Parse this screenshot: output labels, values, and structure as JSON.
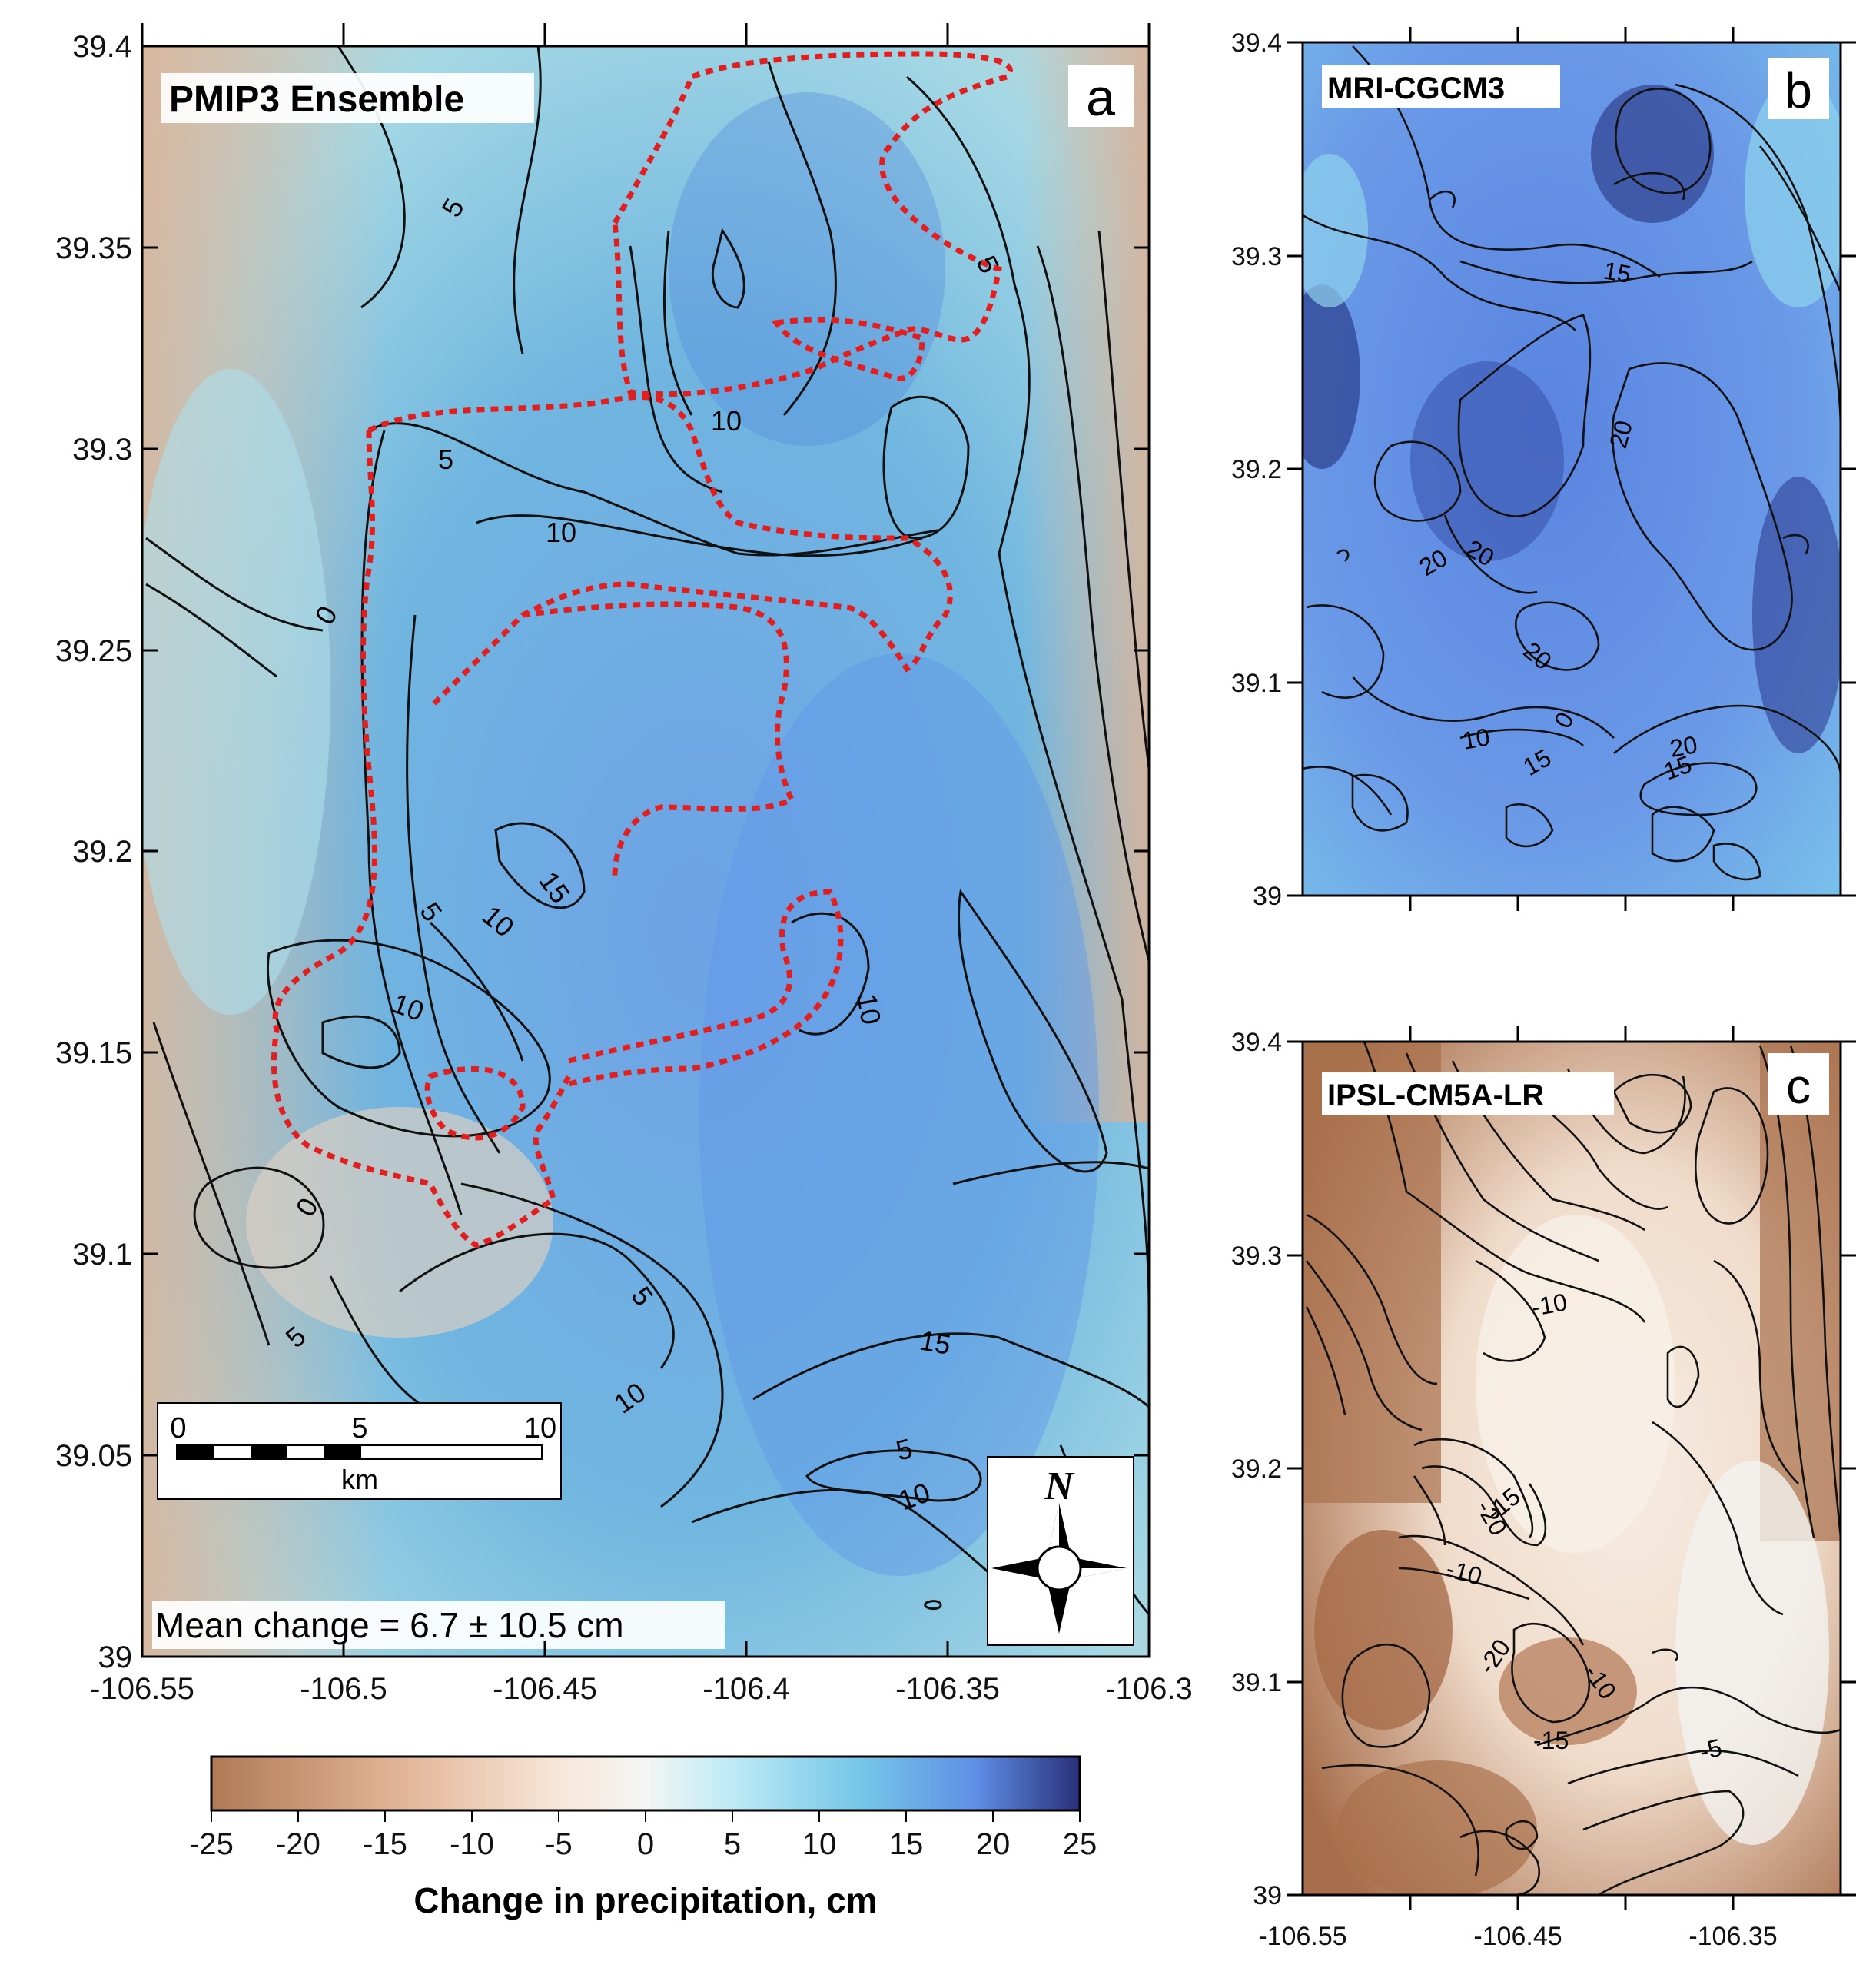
{
  "panels": {
    "a": {
      "title": "PMIP3 Ensemble",
      "letter": "a",
      "y_ticks": [
        "39.4",
        "39.35",
        "39.3",
        "39.25",
        "39.2",
        "39.15",
        "39.1",
        "39.05",
        "39"
      ],
      "x_ticks": [
        "-106.55",
        "-106.5",
        "-106.45",
        "-106.4",
        "-106.35",
        "-106.3"
      ],
      "contour_labels": [
        "5",
        "5",
        "10",
        "5",
        "10",
        "0",
        "15",
        "5",
        "10",
        "10",
        "10",
        "0",
        "5",
        "5",
        "10",
        "15",
        "5",
        "10"
      ],
      "mean_change": "Mean change = 6.7 ± 10.5 cm",
      "scale_bar": {
        "ticks": [
          "0",
          "5",
          "10"
        ],
        "unit": "km"
      },
      "north_arrow": "N"
    },
    "b": {
      "title": "MRI-CGCM3",
      "letter": "b",
      "y_ticks": [
        "39.4",
        "39.3",
        "39.2",
        "39.1",
        "39"
      ],
      "contour_labels": [
        "15",
        "20",
        "20",
        "20",
        "20",
        "10",
        "0",
        "15",
        "20",
        "15"
      ]
    },
    "c": {
      "title": "IPSL-CM5A-LR",
      "letter": "c",
      "y_ticks": [
        "39.4",
        "39.3",
        "39.2",
        "39.1",
        "39"
      ],
      "x_ticks": [
        "-106.55",
        "-106.45",
        "-106.35"
      ],
      "contour_labels": [
        "-10",
        "-20",
        "-15",
        "-10",
        "-20",
        "-10",
        "-15",
        "-5"
      ]
    }
  },
  "colorbar": {
    "ticks": [
      "-25",
      "-20",
      "-15",
      "-10",
      "-5",
      "0",
      "5",
      "10",
      "15",
      "20",
      "25"
    ],
    "label": "Change in precipitation, cm",
    "colors": [
      "#b07a55",
      "#d9a888",
      "#f2d9c5",
      "#f4f4f0",
      "#bfeaf5",
      "#7dcfe6",
      "#6aa6ee",
      "#3f5fb8",
      "#29307a"
    ]
  }
}
